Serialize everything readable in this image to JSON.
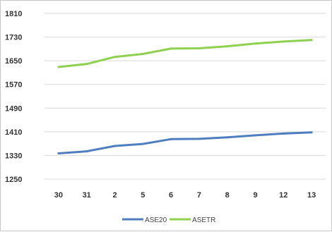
{
  "chart_data": {
    "type": "line",
    "categories": [
      "30",
      "31",
      "2",
      "5",
      "6",
      "7",
      "8",
      "9",
      "12",
      "13"
    ],
    "series": [
      {
        "name": "ASE20",
        "color": "#4f7ec0",
        "values": [
          1337,
          1344,
          1362,
          1369,
          1385,
          1386,
          1391,
          1398,
          1404,
          1408
        ]
      },
      {
        "name": "ASETR",
        "color": "#8ed04f",
        "values": [
          1629,
          1639,
          1663,
          1673,
          1691,
          1692,
          1699,
          1708,
          1715,
          1720
        ]
      }
    ],
    "yticks": [
      "1810",
      "1730",
      "1650",
      "1570",
      "1490",
      "1410",
      "1330",
      "1250"
    ],
    "ylim": [
      1250,
      1810
    ],
    "grid": true,
    "legend": "bottom-center"
  }
}
